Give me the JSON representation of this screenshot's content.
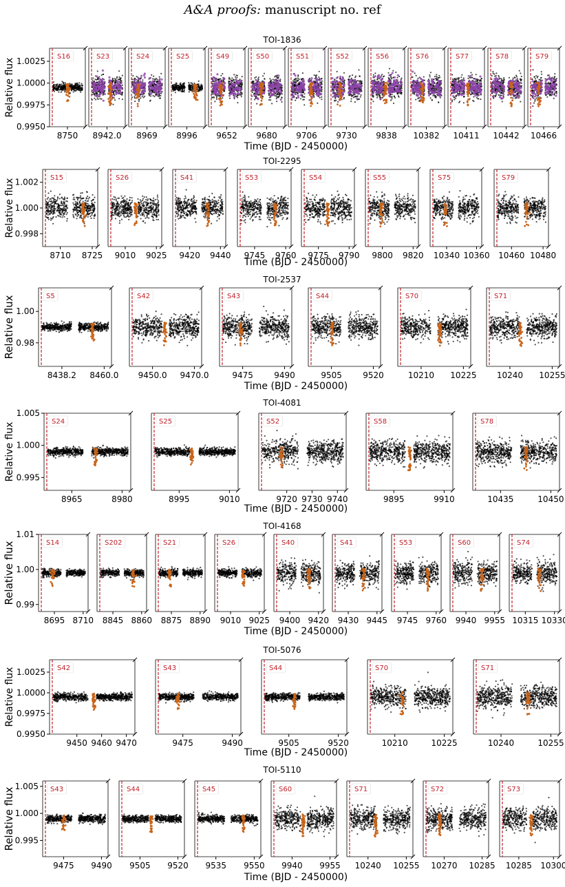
{
  "header": {
    "journal": "A&A proofs:",
    "manuscript": "manuscript no. ref"
  },
  "colors": {
    "data": "#000000",
    "in_transit": "#c8641a",
    "tess_cadence": "#8e44ad",
    "sector_line": "#c0202a",
    "sector_label": "#c0202a"
  },
  "chart_data": [
    {
      "type": "scatter",
      "title": "TOI-1836",
      "ylabel": "Relative flux",
      "xlabel": "Time (BJD - 2450000)",
      "ylim": [
        0.995,
        1.004
      ],
      "yticks": [
        "0.9950",
        "0.9975",
        "1.0000",
        "1.0025"
      ],
      "ytick_values": [
        0.995,
        0.9975,
        1.0,
        1.0025
      ],
      "purple_cadence": true,
      "panels": [
        {
          "sector": "S16",
          "xticks": [
            "8750"
          ]
        },
        {
          "sector": "S23",
          "xticks": [
            "8942.0"
          ]
        },
        {
          "sector": "S24",
          "xticks": [
            "8969"
          ]
        },
        {
          "sector": "S25",
          "xticks": [
            "8996"
          ]
        },
        {
          "sector": "S49",
          "xticks": [
            "9652"
          ]
        },
        {
          "sector": "S50",
          "xticks": [
            "9680"
          ]
        },
        {
          "sector": "S51",
          "xticks": [
            "9706"
          ]
        },
        {
          "sector": "S52",
          "xticks": [
            "9730"
          ]
        },
        {
          "sector": "S56",
          "xticks": [
            "9838"
          ]
        },
        {
          "sector": "S76",
          "xticks": [
            "10382"
          ]
        },
        {
          "sector": "S77",
          "xticks": [
            "10411"
          ]
        },
        {
          "sector": "S78",
          "xticks": [
            "10442"
          ]
        },
        {
          "sector": "S79",
          "xticks": [
            "10466"
          ]
        }
      ]
    },
    {
      "type": "scatter",
      "title": "TOI-2295",
      "ylabel": "Relative flux",
      "xlabel": "Time (BJD - 2450000)",
      "ylim": [
        0.997,
        1.003
      ],
      "yticks": [
        "0.998",
        "1.000",
        "1.002"
      ],
      "ytick_values": [
        0.998,
        1.0,
        1.002
      ],
      "panels": [
        {
          "sector": "S15",
          "xticks": [
            "8710",
            "8725"
          ]
        },
        {
          "sector": "S26",
          "xticks": [
            "9010",
            "9025"
          ]
        },
        {
          "sector": "S41",
          "xticks": [
            "9420",
            "9440"
          ]
        },
        {
          "sector": "S53",
          "xticks": [
            "9745",
            "9760"
          ]
        },
        {
          "sector": "S54",
          "xticks": [
            "9775",
            "9790"
          ]
        },
        {
          "sector": "S55",
          "xticks": [
            "9800",
            "9820"
          ]
        },
        {
          "sector": "S75",
          "xticks": [
            "10340",
            "10360"
          ]
        },
        {
          "sector": "S79",
          "xticks": [
            "10460",
            "10480"
          ]
        }
      ]
    },
    {
      "type": "scatter",
      "title": "TOI-2537",
      "ylabel": "Relative flux",
      "xlabel": "Time (BJD - 2450000)",
      "ylim": [
        0.965,
        1.015
      ],
      "yticks": [
        "0.98",
        "1.00"
      ],
      "ytick_values": [
        0.98,
        1.0
      ],
      "panels": [
        {
          "sector": "S5",
          "xticks": [
            "8438.2",
            "8460.0"
          ]
        },
        {
          "sector": "S42",
          "xticks": [
            "9450.0",
            "9470.0"
          ]
        },
        {
          "sector": "S43",
          "xticks": [
            "9475",
            "9490"
          ]
        },
        {
          "sector": "S44",
          "xticks": [
            "9505",
            "9520"
          ]
        },
        {
          "sector": "S70",
          "xticks": [
            "10210",
            "10225"
          ]
        },
        {
          "sector": "S71",
          "xticks": [
            "10240",
            "10255"
          ]
        }
      ]
    },
    {
      "type": "scatter",
      "title": "TOI-4081",
      "ylabel": "Relative flux",
      "xlabel": "Time (BJD - 2450000)",
      "ylim": [
        0.993,
        1.005
      ],
      "yticks": [
        "0.995",
        "1.000",
        "1.005"
      ],
      "ytick_values": [
        0.995,
        1.0,
        1.005
      ],
      "panels": [
        {
          "sector": "S24",
          "xticks": [
            "8965",
            "8980"
          ]
        },
        {
          "sector": "S25",
          "xticks": [
            "8995",
            "9010"
          ]
        },
        {
          "sector": "S52",
          "xticks": [
            "9720",
            "9730",
            "9740"
          ]
        },
        {
          "sector": "S58",
          "xticks": [
            "9895",
            "9910"
          ]
        },
        {
          "sector": "S78",
          "xticks": [
            "10435",
            "10450"
          ]
        }
      ]
    },
    {
      "type": "scatter",
      "title": "TOI-4168",
      "ylabel": "Relative flux",
      "xlabel": "Time (BJD - 2450000)",
      "ylim": [
        0.988,
        1.01
      ],
      "yticks": [
        "0.99",
        "1.00",
        "1.01"
      ],
      "ytick_values": [
        0.99,
        1.0,
        1.01
      ],
      "panels": [
        {
          "sector": "S14",
          "xticks": [
            "8695",
            "8710"
          ]
        },
        {
          "sector": "S202",
          "xticks": [
            "8845",
            "8860"
          ]
        },
        {
          "sector": "S21",
          "xticks": [
            "8875",
            "8890"
          ]
        },
        {
          "sector": "S26",
          "xticks": [
            "9010",
            "9025"
          ]
        },
        {
          "sector": "S40",
          "xticks": [
            "9400",
            "9420"
          ]
        },
        {
          "sector": "S41",
          "xticks": [
            "9430",
            "9445"
          ]
        },
        {
          "sector": "S53",
          "xticks": [
            "9745",
            "9760"
          ]
        },
        {
          "sector": "S60",
          "xticks": [
            "9940",
            "9955"
          ]
        },
        {
          "sector": "S74",
          "xticks": [
            "10315",
            "10330"
          ]
        }
      ]
    },
    {
      "type": "scatter",
      "title": "TOI-5076",
      "ylabel": "Relative flux",
      "xlabel": "Time (BJD - 2450000)",
      "ylim": [
        0.995,
        1.004
      ],
      "yticks": [
        "0.9950",
        "0.9975",
        "1.0000",
        "1.0025"
      ],
      "ytick_values": [
        0.995,
        0.9975,
        1.0,
        1.0025
      ],
      "panels": [
        {
          "sector": "S42",
          "xticks": [
            "9450",
            "9460",
            "9470"
          ]
        },
        {
          "sector": "S43",
          "xticks": [
            "9475",
            "9490"
          ]
        },
        {
          "sector": "S44",
          "xticks": [
            "9505",
            "9520"
          ]
        },
        {
          "sector": "S70",
          "xticks": [
            "10210",
            "10225"
          ]
        },
        {
          "sector": "S71",
          "xticks": [
            "10240",
            "10255"
          ]
        }
      ]
    },
    {
      "type": "scatter",
      "title": "TOI-5110",
      "ylabel": "Relative flux",
      "xlabel": "Time (BJD - 2450000)",
      "ylim": [
        0.992,
        1.006
      ],
      "yticks": [
        "0.995",
        "1.000",
        "1.005"
      ],
      "ytick_values": [
        0.995,
        1.0,
        1.005
      ],
      "panels": [
        {
          "sector": "S43",
          "xticks": [
            "9475",
            "9490"
          ]
        },
        {
          "sector": "S44",
          "xticks": [
            "9505",
            "9520"
          ]
        },
        {
          "sector": "S45",
          "xticks": [
            "9535",
            "9550"
          ]
        },
        {
          "sector": "S60",
          "xticks": [
            "9940",
            "9955"
          ]
        },
        {
          "sector": "S71",
          "xticks": [
            "10240",
            "10255"
          ]
        },
        {
          "sector": "S72",
          "xticks": [
            "10270",
            "10285"
          ]
        },
        {
          "sector": "S73",
          "xticks": [
            "10285",
            "10300"
          ]
        }
      ]
    }
  ]
}
